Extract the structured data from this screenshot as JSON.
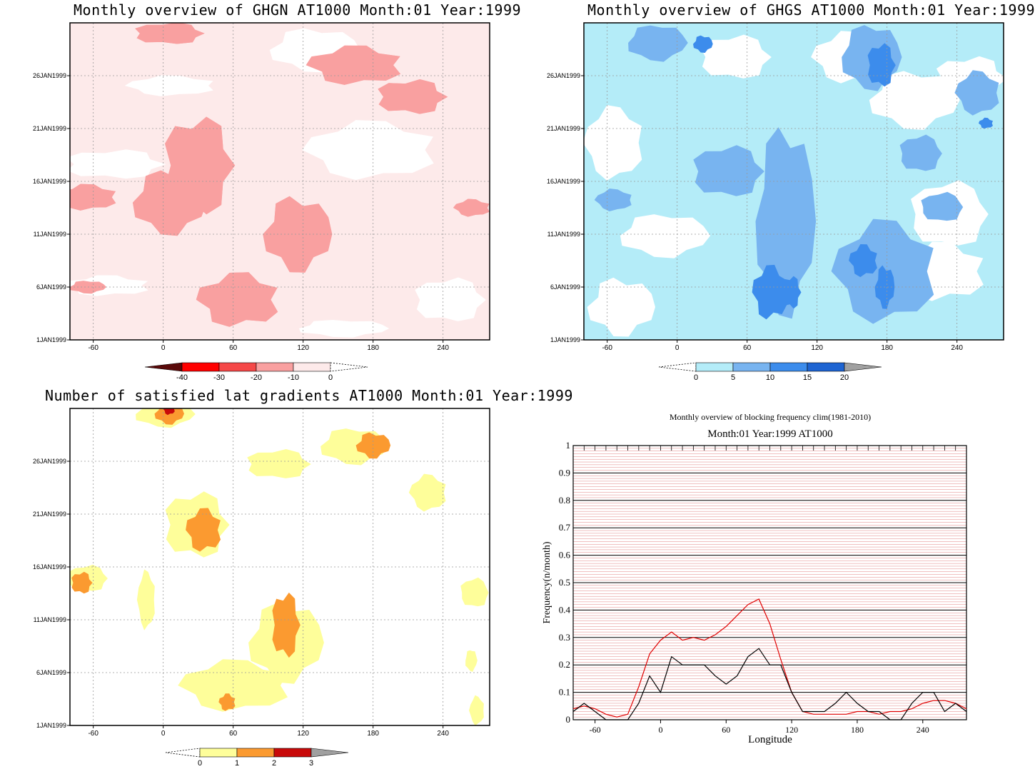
{
  "panels": {
    "ghgn": {
      "title": "Monthly overview of GHGN AT1000 Month:01 Year:1999",
      "ytick_labels": [
        "1JAN1999",
        "6JAN1999",
        "11JAN1999",
        "16JAN1999",
        "21JAN1999",
        "26JAN1999"
      ],
      "xtick_labels": [
        "-60",
        "0",
        "60",
        "120",
        "180",
        "240"
      ],
      "colorbar_labels": [
        "-40",
        "-30",
        "-20",
        "-10",
        "0"
      ],
      "colorbar_colors": [
        "#5a0a0a",
        "#ff0000",
        "#f54848",
        "#f9a0a0",
        "#fdeaea",
        "#ffffff"
      ],
      "field_colors": [
        "#ffffff",
        "#fdeaea",
        "#f9a0a0"
      ]
    },
    "ghgs": {
      "title": "Monthly overview of GHGS AT1000 Month:01 Year:1999",
      "ytick_labels": [
        "1JAN1999",
        "6JAN1999",
        "11JAN1999",
        "16JAN1999",
        "21JAN1999",
        "26JAN1999"
      ],
      "xtick_labels": [
        "-60",
        "0",
        "60",
        "120",
        "180",
        "240"
      ],
      "colorbar_labels": [
        "0",
        "5",
        "10",
        "15",
        "20"
      ],
      "colorbar_colors": [
        "#ffffff",
        "#b4ecf8",
        "#78b4f0",
        "#3c8cec",
        "#1e64d2",
        "#a0a0a0"
      ],
      "field_colors": [
        "#ffffff",
        "#b4ecf8",
        "#78b4f0",
        "#3c8cec"
      ]
    },
    "grad": {
      "title": "Number of satisfied lat gradients AT1000 Month:01 Year:1999",
      "ytick_labels": [
        "1JAN1999",
        "6JAN1999",
        "11JAN1999",
        "16JAN1999",
        "21JAN1999",
        "26JAN1999"
      ],
      "xtick_labels": [
        "-60",
        "0",
        "60",
        "120",
        "180",
        "240"
      ],
      "colorbar_labels": [
        "0",
        "1",
        "2",
        "3"
      ],
      "colorbar_colors": [
        "#ffffff",
        "#fefe9a",
        "#fb9a30",
        "#c80a0a",
        "#a0a0a0"
      ],
      "field_colors": [
        "#ffffff",
        "#fefe9a",
        "#fb9a30",
        "#c80a0a"
      ]
    },
    "freq": {
      "title": "Monthly overview of blocking frequency clim(1981-2010)",
      "subtitle": "Month:01 Year:1999  AT1000",
      "ylabel": "Frequency(n/month)",
      "xlabel": "Longitude",
      "xtick_labels": [
        "-60",
        "0",
        "60",
        "120",
        "180",
        "240"
      ],
      "ytick_labels": [
        "0",
        "0.1",
        "0.2",
        "0.3",
        "0.4",
        "0.5",
        "0.6",
        "0.7",
        "0.8",
        "0.9",
        "1"
      ]
    }
  },
  "chart_data": [
    {
      "type": "heatmap",
      "title": "Monthly overview of GHGN AT1000 Month:01 Year:1999",
      "x_range": [
        -80,
        280
      ],
      "y_range": [
        "1JAN1999",
        "31JAN1999"
      ],
      "levels": [
        -40,
        -30,
        -20,
        -10,
        0
      ],
      "blobs": [
        {
          "lon": 65,
          "day": 4.8,
          "rlon": 35,
          "rday": 2.5,
          "level": "-20 to -10"
        },
        {
          "lon": 30,
          "day": 17.5,
          "rlon": 30,
          "rday": 4.5,
          "level": "-20 to -10"
        },
        {
          "lon": 115,
          "day": 11.0,
          "rlon": 28,
          "rday": 3.5,
          "level": "-20 to -10"
        },
        {
          "lon": 165,
          "day": 27.0,
          "rlon": 40,
          "rday": 1.8,
          "level": "-20 to -10"
        },
        {
          "lon": 213,
          "day": 24.0,
          "rlon": 30,
          "rday": 1.6,
          "level": "-20 to -10"
        },
        {
          "lon": 5,
          "day": 14.0,
          "rlon": 30,
          "rday": 3.0,
          "level": "-20 to -10"
        },
        {
          "lon": -65,
          "day": 14.5,
          "rlon": 25,
          "rday": 1.2,
          "level": "-20 to -10"
        },
        {
          "lon": 5,
          "day": 30.0,
          "rlon": 30,
          "rday": 1.0,
          "level": "-20 to -10"
        },
        {
          "lon": -65,
          "day": 6.0,
          "rlon": 15,
          "rday": 0.6,
          "level": "-20 to -10"
        },
        {
          "lon": 265,
          "day": 13.5,
          "rlon": 15,
          "rday": 0.8,
          "level": "-20 to -10"
        }
      ]
    },
    {
      "type": "heatmap",
      "title": "Monthly overview of GHGS AT1000 Month:01 Year:1999",
      "x_range": [
        -80,
        280
      ],
      "y_range": [
        "1JAN1999",
        "31JAN1999"
      ],
      "levels": [
        0,
        5,
        10,
        15,
        20
      ],
      "blobs": [
        {
          "lon": 80,
          "day": 5.5,
          "rlon": 15,
          "rday": 2.5,
          "level": "10 to 15"
        },
        {
          "lon": 98,
          "day": 5.5,
          "rlon": 8,
          "rday": 1.5,
          "level": "10 to 15"
        },
        {
          "lon": 178,
          "day": 6.0,
          "rlon": 8,
          "rday": 2.0,
          "level": "10 to 15"
        },
        {
          "lon": 160,
          "day": 8.5,
          "rlon": 12,
          "rday": 1.5,
          "level": "10 to 15"
        },
        {
          "lon": 175,
          "day": 27.0,
          "rlon": 12,
          "rday": 2.0,
          "level": "10 to 15"
        },
        {
          "lon": 22,
          "day": 29.0,
          "rlon": 8,
          "rday": 0.8,
          "level": "10 to 15"
        },
        {
          "lon": 265,
          "day": 21.5,
          "rlon": 6,
          "rday": 0.5,
          "level": "10 to 15"
        }
      ]
    },
    {
      "type": "heatmap",
      "title": "Number of satisfied lat gradients AT1000 Month:01 Year:1999",
      "x_range": [
        -80,
        280
      ],
      "y_range": [
        "1JAN1999",
        "31JAN1999"
      ],
      "levels": [
        0,
        1,
        2,
        3
      ],
      "blobs": [
        {
          "lon": 35,
          "day": 19.5,
          "rlon": 15,
          "rday": 2.0,
          "level": "2 to 3"
        },
        {
          "lon": 105,
          "day": 10.5,
          "rlon": 12,
          "rday": 3.0,
          "level": "2 to 3"
        },
        {
          "lon": 180,
          "day": 27.5,
          "rlon": 14,
          "rday": 1.2,
          "level": "2 to 3"
        },
        {
          "lon": 55,
          "day": 3.2,
          "rlon": 7,
          "rday": 0.8,
          "level": "2 to 3"
        },
        {
          "lon": -70,
          "day": 14.5,
          "rlon": 9,
          "rday": 1.0,
          "level": "2 to 3"
        },
        {
          "lon": 5,
          "day": 30.5,
          "rlon": 12,
          "rday": 1.0,
          "level": "2 to 3"
        },
        {
          "lon": 5,
          "day": 31.0,
          "rlon": 5,
          "rday": 0.6,
          "level": "3+"
        }
      ]
    },
    {
      "type": "line",
      "title": "Monthly overview of blocking frequency clim(1981-2010)",
      "subtitle": "Month:01 Year:1999  AT1000",
      "xlabel": "Longitude",
      "ylabel": "Frequency(n/month)",
      "xlim": [
        -80,
        280
      ],
      "ylim": [
        0,
        1
      ],
      "grid": true,
      "series": [
        {
          "color": "#e00000",
          "x": [
            -80,
            -70,
            -60,
            -50,
            -40,
            -30,
            -20,
            -10,
            0,
            10,
            20,
            30,
            40,
            50,
            60,
            70,
            80,
            90,
            100,
            110,
            120,
            130,
            140,
            150,
            160,
            170,
            180,
            190,
            200,
            210,
            220,
            230,
            240,
            250,
            260,
            270,
            280
          ],
          "y": [
            0.04,
            0.05,
            0.04,
            0.02,
            0.01,
            0.02,
            0.12,
            0.24,
            0.29,
            0.32,
            0.29,
            0.3,
            0.29,
            0.31,
            0.34,
            0.38,
            0.42,
            0.44,
            0.35,
            0.22,
            0.1,
            0.03,
            0.02,
            0.02,
            0.02,
            0.02,
            0.03,
            0.03,
            0.02,
            0.03,
            0.03,
            0.04,
            0.06,
            0.07,
            0.07,
            0.06,
            0.04
          ]
        },
        {
          "color": "#000000",
          "x": [
            -80,
            -70,
            -60,
            -50,
            -40,
            -30,
            -20,
            -10,
            0,
            10,
            20,
            30,
            40,
            50,
            60,
            70,
            80,
            90,
            100,
            110,
            120,
            130,
            140,
            150,
            160,
            170,
            180,
            190,
            200,
            210,
            220,
            230,
            240,
            250,
            260,
            270,
            280
          ],
          "y": [
            0.03,
            0.06,
            0.03,
            0.0,
            0.0,
            0.0,
            0.06,
            0.16,
            0.1,
            0.23,
            0.2,
            0.2,
            0.2,
            0.16,
            0.13,
            0.16,
            0.23,
            0.26,
            0.2,
            0.2,
            0.1,
            0.03,
            0.03,
            0.03,
            0.06,
            0.1,
            0.06,
            0.03,
            0.03,
            0.0,
            0.0,
            0.06,
            0.1,
            0.1,
            0.03,
            0.06,
            0.03
          ]
        }
      ]
    }
  ]
}
